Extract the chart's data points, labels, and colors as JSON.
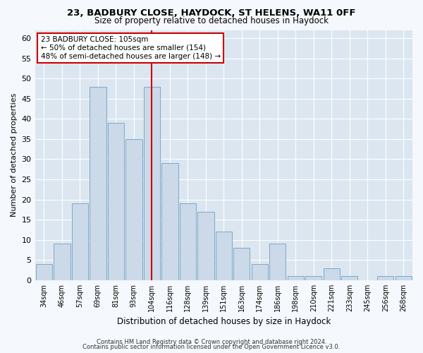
{
  "title1": "23, BADBURY CLOSE, HAYDOCK, ST HELENS, WA11 0FF",
  "title2": "Size of property relative to detached houses in Haydock",
  "xlabel": "Distribution of detached houses by size in Haydock",
  "ylabel": "Number of detached properties",
  "categories": [
    "34sqm",
    "46sqm",
    "57sqm",
    "69sqm",
    "81sqm",
    "93sqm",
    "104sqm",
    "116sqm",
    "128sqm",
    "139sqm",
    "151sqm",
    "163sqm",
    "174sqm",
    "186sqm",
    "198sqm",
    "210sqm",
    "221sqm",
    "233sqm",
    "245sqm",
    "256sqm",
    "268sqm"
  ],
  "values": [
    4,
    9,
    19,
    48,
    39,
    35,
    48,
    29,
    19,
    17,
    12,
    8,
    4,
    9,
    1,
    1,
    3,
    1,
    0,
    1,
    1
  ],
  "bar_color": "#ccd9e8",
  "bar_edge_color": "#7aaac8",
  "highlight_index": 6,
  "highlight_line_color": "#cc0000",
  "annotation_text": "23 BADBURY CLOSE: 105sqm\n← 50% of detached houses are smaller (154)\n48% of semi-detached houses are larger (148) →",
  "annotation_box_color": "#ffffff",
  "annotation_box_edge_color": "#cc0000",
  "ylim": [
    0,
    62
  ],
  "yticks": [
    0,
    5,
    10,
    15,
    20,
    25,
    30,
    35,
    40,
    45,
    50,
    55,
    60
  ],
  "bg_color": "#dce6f0",
  "grid_color": "#ffffff",
  "fig_bg_color": "#f5f8fc",
  "footer1": "Contains HM Land Registry data © Crown copyright and database right 2024.",
  "footer2": "Contains public sector information licensed under the Open Government Licence v3.0."
}
